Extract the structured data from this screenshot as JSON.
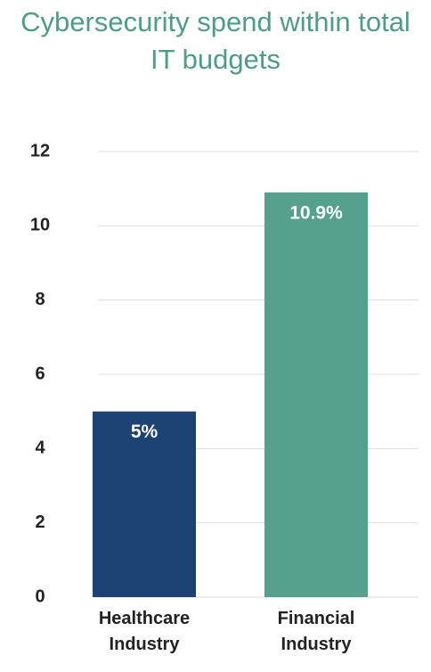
{
  "chart_data": {
    "type": "bar",
    "title": "Cybersecurity spend within total IT budgets",
    "categories": [
      "Healthcare Industry",
      "Financial Industry"
    ],
    "values": [
      5,
      10.9
    ],
    "value_labels": [
      "5%",
      "10.9%"
    ],
    "colors": [
      "#1d4273",
      "#55a08e"
    ],
    "ylim": [
      0,
      12
    ],
    "yticks": [
      0,
      2,
      4,
      6,
      8,
      10,
      12
    ],
    "grid": true
  }
}
